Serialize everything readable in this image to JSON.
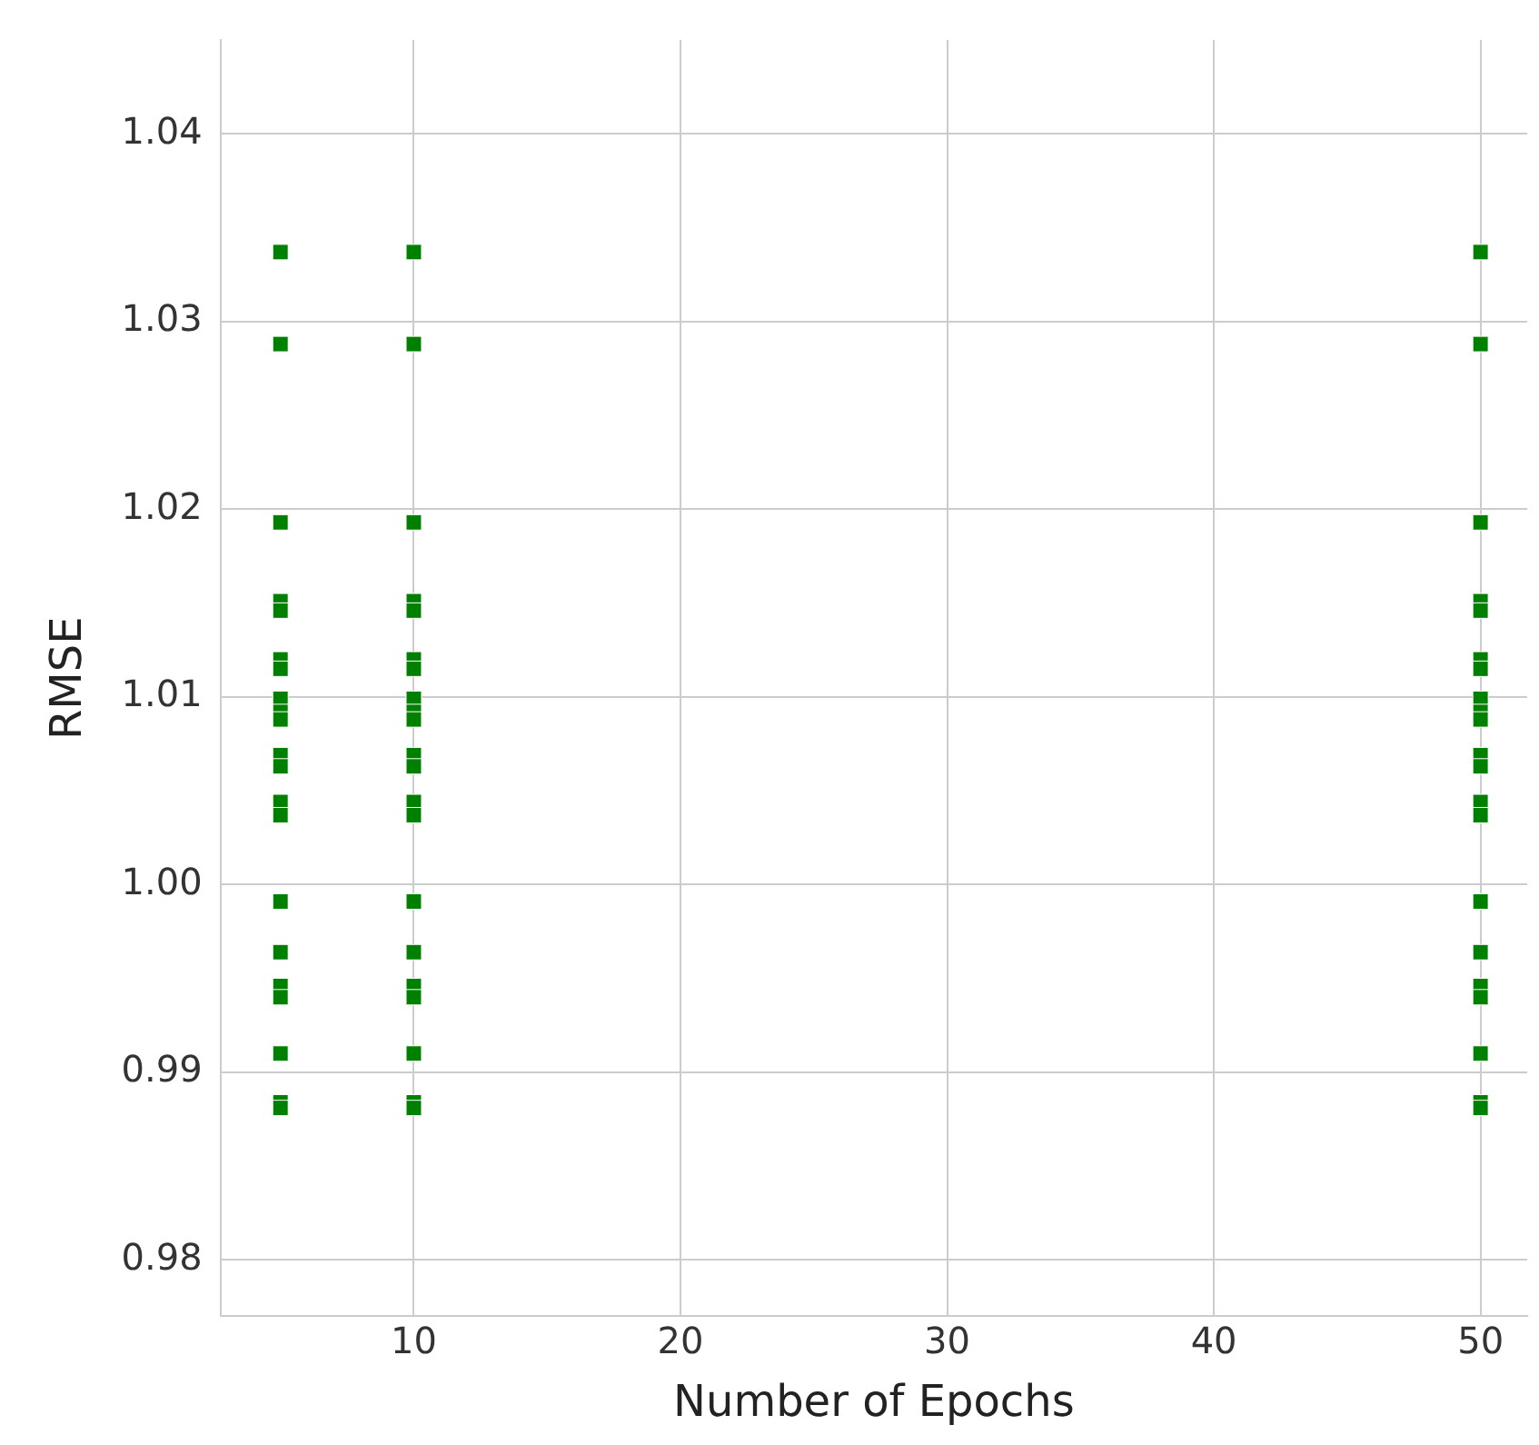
{
  "chart_data": {
    "type": "scatter",
    "xlabel": "Number of Epochs",
    "ylabel": "RMSE",
    "x": [
      5,
      5,
      5,
      5,
      5,
      5,
      5,
      5,
      5,
      5,
      5,
      5,
      5,
      5,
      5,
      5,
      5,
      5,
      5,
      5,
      5,
      10,
      10,
      10,
      10,
      10,
      10,
      10,
      10,
      10,
      10,
      10,
      10,
      10,
      10,
      10,
      10,
      10,
      10,
      10,
      10,
      10,
      50,
      50,
      50,
      50,
      50,
      50,
      50,
      50,
      50,
      50,
      50,
      50,
      50,
      50,
      50,
      50,
      50,
      50,
      50,
      50,
      50
    ],
    "series": [
      {
        "color": "#008000",
        "values": [
          1.0337,
          1.0288,
          1.0193,
          1.0151,
          1.0146,
          1.012,
          1.0115,
          1.0099,
          1.0092,
          1.0088,
          1.0069,
          1.0063,
          1.0044,
          1.0037,
          0.9991,
          0.9964,
          0.9946,
          0.994,
          0.991,
          0.9884,
          0.9881,
          1.0337,
          1.0288,
          1.0193,
          1.0151,
          1.0146,
          1.012,
          1.0115,
          1.0099,
          1.0092,
          1.0088,
          1.0069,
          1.0063,
          1.0044,
          1.0037,
          0.9991,
          0.9964,
          0.9946,
          0.994,
          0.991,
          0.9884,
          0.9881,
          1.0337,
          1.0288,
          1.0193,
          1.0151,
          1.0146,
          1.012,
          1.0115,
          1.0099,
          1.0092,
          1.0088,
          1.0069,
          1.0063,
          1.0044,
          1.0037,
          0.9991,
          0.9964,
          0.9946,
          0.994,
          0.991,
          0.9884,
          0.9881
        ]
      }
    ],
    "xlim": [
      2.75,
      51.75
    ],
    "xticks": [
      10,
      20,
      30,
      40,
      50
    ],
    "ylim": [
      0.977,
      1.045
    ],
    "yticks": [
      {
        "value": 0.98,
        "label": "0.98"
      },
      {
        "value": 0.99,
        "label": "0.99"
      },
      {
        "value": 1.0,
        "label": "1.00"
      },
      {
        "value": 1.01,
        "label": "1.01"
      },
      {
        "value": 1.02,
        "label": "1.02"
      },
      {
        "value": 1.03,
        "label": "1.03"
      },
      {
        "value": 1.04,
        "label": "1.04"
      }
    ],
    "grid": true,
    "legend": false,
    "marker": "square"
  }
}
